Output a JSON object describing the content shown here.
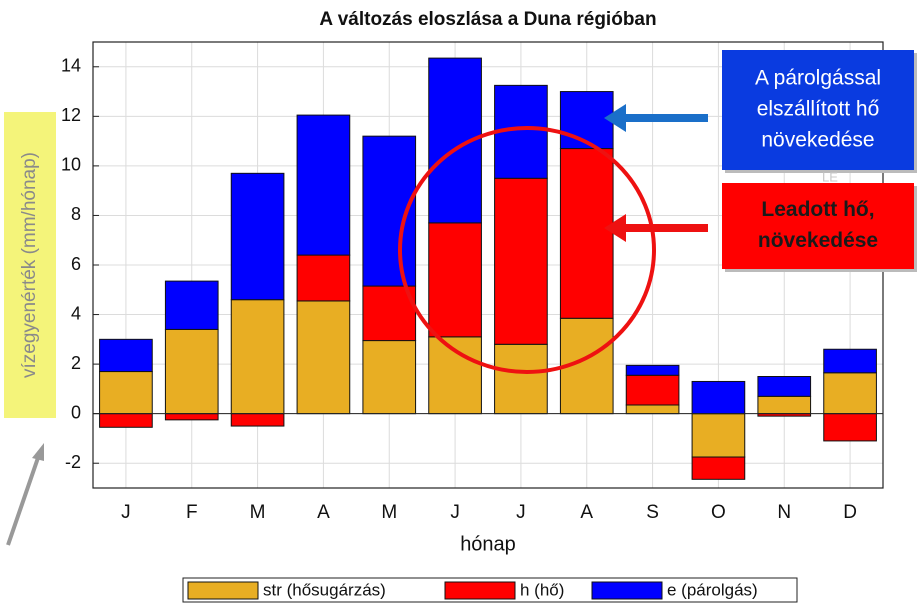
{
  "chart_data": {
    "type": "bar",
    "stacked": true,
    "title": "A változás eloszlása a Duna régióban",
    "xlabel": "hónap",
    "ylabel": "vízegyenérték (mm/hónap)",
    "categories": [
      "J",
      "F",
      "M",
      "A",
      "M",
      "J",
      "J",
      "A",
      "S",
      "O",
      "N",
      "D"
    ],
    "series": [
      {
        "name": "str (hősugárzás)",
        "color": "#E8AE23",
        "values": [
          1.7,
          3.4,
          4.6,
          4.55,
          2.95,
          3.1,
          2.8,
          3.85,
          0.35,
          -1.75,
          0.7,
          1.65
        ]
      },
      {
        "name": "h (hő)",
        "color": "#FF0000",
        "values": [
          -0.55,
          -0.25,
          -0.5,
          1.85,
          2.2,
          4.6,
          6.7,
          6.85,
          1.2,
          -0.9,
          -0.1,
          -1.1
        ]
      },
      {
        "name": "e (párolgás)",
        "color": "#0000FF",
        "values": [
          1.3,
          1.95,
          5.1,
          5.65,
          6.05,
          6.65,
          3.75,
          2.3,
          0.4,
          1.3,
          0.8,
          0.95
        ]
      }
    ],
    "ylim": [
      -3,
      15
    ],
    "yticks": [
      -2,
      0,
      2,
      4,
      6,
      8,
      10,
      12,
      14
    ],
    "grid": true,
    "legend": "bottom",
    "annotations": [
      {
        "lines": [
          "A párolgással",
          "elszállított hő",
          "növekedése"
        ],
        "color": "#0A3BE0"
      },
      {
        "lines": [
          "Leadott hő,",
          "növekedése"
        ],
        "color": "#FF0000"
      },
      {
        "lines": [
          "LE"
        ],
        "color": "#c8c8c8"
      }
    ]
  }
}
